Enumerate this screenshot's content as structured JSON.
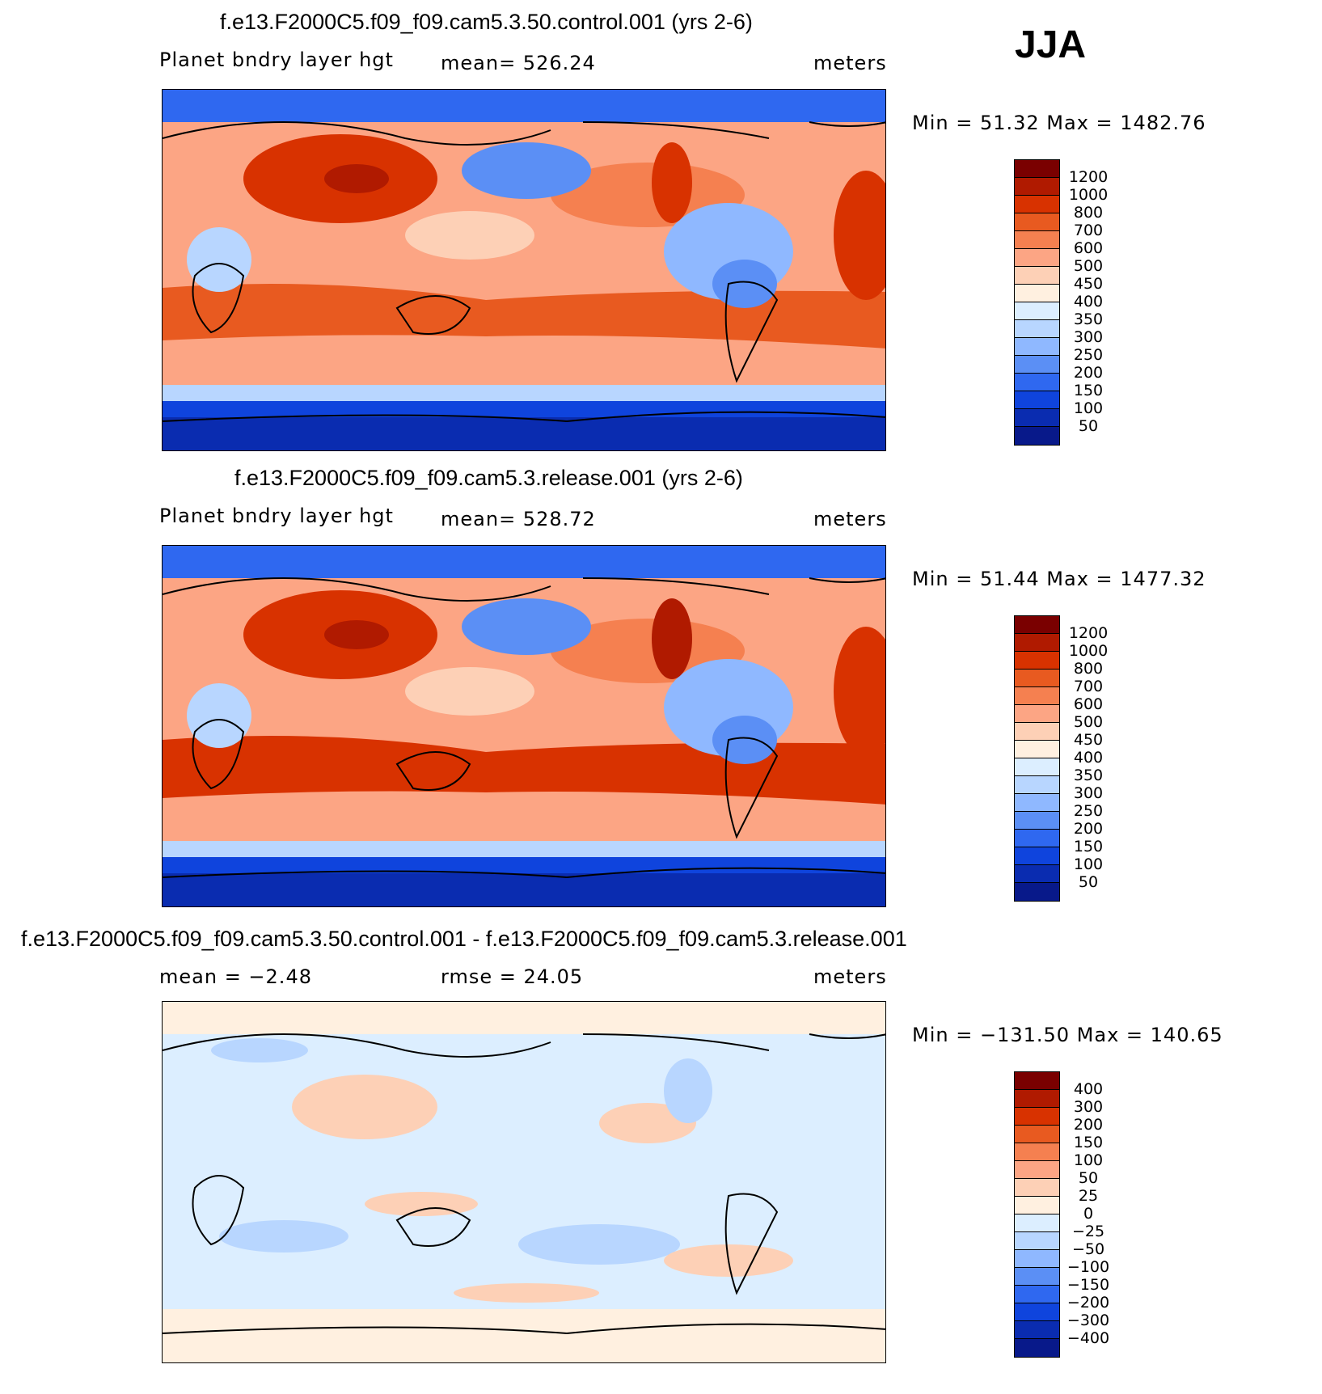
{
  "season": "JJA",
  "panels": [
    {
      "title": "f.e13.F2000C5.f09_f09.cam5.3.50.control.001 (yrs 2-6)",
      "variable": "Planet bndry layer hgt",
      "stat": "mean=  526.24",
      "units": "meters",
      "minmax": "Min =   51.32 Max = 1482.76",
      "colorbar_labels": [
        "1200",
        "1000",
        "800",
        "700",
        "600",
        "500",
        "450",
        "400",
        "350",
        "300",
        "250",
        "200",
        "150",
        "100",
        "50"
      ]
    },
    {
      "title": "f.e13.F2000C5.f09_f09.cam5.3.release.001 (yrs 2-6)",
      "variable": "Planet bndry layer hgt",
      "stat": "mean=  528.72",
      "units": "meters",
      "minmax": "Min =   51.44 Max = 1477.32",
      "colorbar_labels": [
        "1200",
        "1000",
        "800",
        "700",
        "600",
        "500",
        "450",
        "400",
        "350",
        "300",
        "250",
        "200",
        "150",
        "100",
        "50"
      ]
    },
    {
      "title": "f.e13.F2000C5.f09_f09.cam5.3.50.control.001 - f.e13.F2000C5.f09_f09.cam5.3.release.001",
      "stat_left": "mean =   −2.48",
      "stat_mid": "rmse =   24.05",
      "units": "meters",
      "minmax": "Min = −131.50 Max = 140.65",
      "colorbar_labels": [
        "400",
        "300",
        "200",
        "150",
        "100",
        "50",
        "25",
        "0",
        "−25",
        "−50",
        "−100",
        "−150",
        "−200",
        "−300",
        "−400"
      ]
    }
  ],
  "colors": {
    "colorbar": [
      "#7a0000",
      "#b01a00",
      "#d83200",
      "#e85a20",
      "#f58050",
      "#fca584",
      "#fdd0b6",
      "#fff0e0",
      "#dceeff",
      "#b8d6ff",
      "#8fb8ff",
      "#5b8ff5",
      "#2f68f0",
      "#0f44dd",
      "#0a2cb0",
      "#08198a"
    ],
    "land_outline": "#000000"
  }
}
